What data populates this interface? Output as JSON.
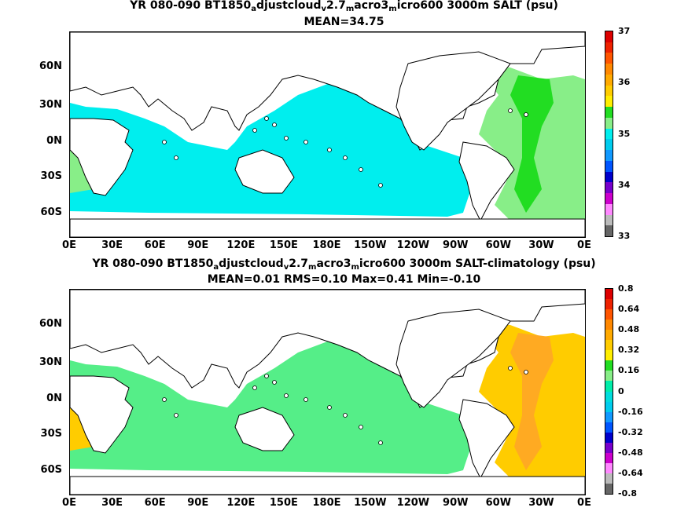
{
  "panels": [
    {
      "title_parts": [
        "YR 080-090 BT1850",
        "a",
        "djustcloud",
        "v",
        "2.7",
        "m",
        "acro3",
        "m",
        "icro600 3000m SALT (psu)"
      ],
      "stats": "MEAN=34.75",
      "colorbar": {
        "labels": [
          "37",
          "36",
          "35",
          "34",
          "33"
        ],
        "colors": [
          "#dd0000",
          "#ee2200",
          "#ff5500",
          "#ff8800",
          "#ffaa00",
          "#ffcc00",
          "#ffee00",
          "#22dd22",
          "#88ee88",
          "#00eeee",
          "#00ccee",
          "#1199ff",
          "#0055ff",
          "#0000cc",
          "#7700cc",
          "#cc00cc",
          "#ff88ff",
          "#bbbbbb",
          "#666666"
        ]
      },
      "ocean_fill": "#00eeee",
      "atlantic_fill": "#88ee88",
      "atlantic_core": "#22dd22"
    },
    {
      "title_parts": [
        "YR 080-090 BT1850",
        "a",
        "djustcloud",
        "v",
        "2.7",
        "m",
        "acro3",
        "m",
        "icro600 3000m SALT-climatology (psu)"
      ],
      "stats": "MEAN=0.01   RMS=0.10   Max=0.41   Min=-0.10",
      "colorbar": {
        "labels": [
          "0.8",
          "0.64",
          "0.48",
          "0.32",
          "0.16",
          "0",
          "-0.16",
          "-0.32",
          "-0.48",
          "-0.64",
          "-0.8"
        ],
        "colors": [
          "#dd0000",
          "#ee2200",
          "#ff5500",
          "#ff8800",
          "#ffaa00",
          "#ffcc00",
          "#ffee00",
          "#22dd22",
          "#88ee88",
          "#00eeaa",
          "#00dddd",
          "#00ccee",
          "#1199ff",
          "#0055ff",
          "#0000cc",
          "#7700cc",
          "#cc00cc",
          "#ff88ff",
          "#bbbbbb",
          "#666666"
        ]
      },
      "ocean_fill": "#55ee88",
      "atlantic_fill": "#ffcc00",
      "atlantic_core": "#ffaa22"
    }
  ],
  "axes": {
    "lat_labels": [
      "60N",
      "30N",
      "0N",
      "30S",
      "60S"
    ],
    "lon_labels": [
      "0E",
      "30E",
      "60E",
      "90E",
      "120E",
      "150E",
      "180E",
      "150W",
      "120W",
      "90W",
      "60W",
      "30W",
      "0E"
    ]
  }
}
